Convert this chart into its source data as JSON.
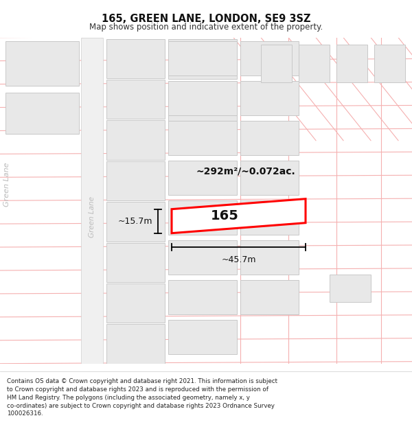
{
  "title": "165, GREEN LANE, LONDON, SE9 3SZ",
  "subtitle": "Map shows position and indicative extent of the property.",
  "footer": "Contains OS data © Crown copyright and database right 2021. This information is subject to Crown copyright and database rights 2023 and is reproduced with the permission of HM Land Registry. The polygons (including the associated geometry, namely x, y co-ordinates) are subject to Crown copyright and database rights 2023 Ordnance Survey 100026316.",
  "area_label": "~292m²/~0.072ac.",
  "number_label": "165",
  "width_label": "~45.7m",
  "height_label": "~15.7m",
  "bg_color": "#ffffff",
  "grid_color": "#f5b0b0",
  "building_fill": "#e8e8e8",
  "building_edge": "#c8c8c8",
  "road_fill": "#f0f0f0",
  "road_edge": "#d0d0d0",
  "prop_fill": "#ffffff",
  "prop_edge": "#ff0000",
  "road_label_color": "#bbbbbb",
  "dim_color": "#111111",
  "text_color": "#111111"
}
